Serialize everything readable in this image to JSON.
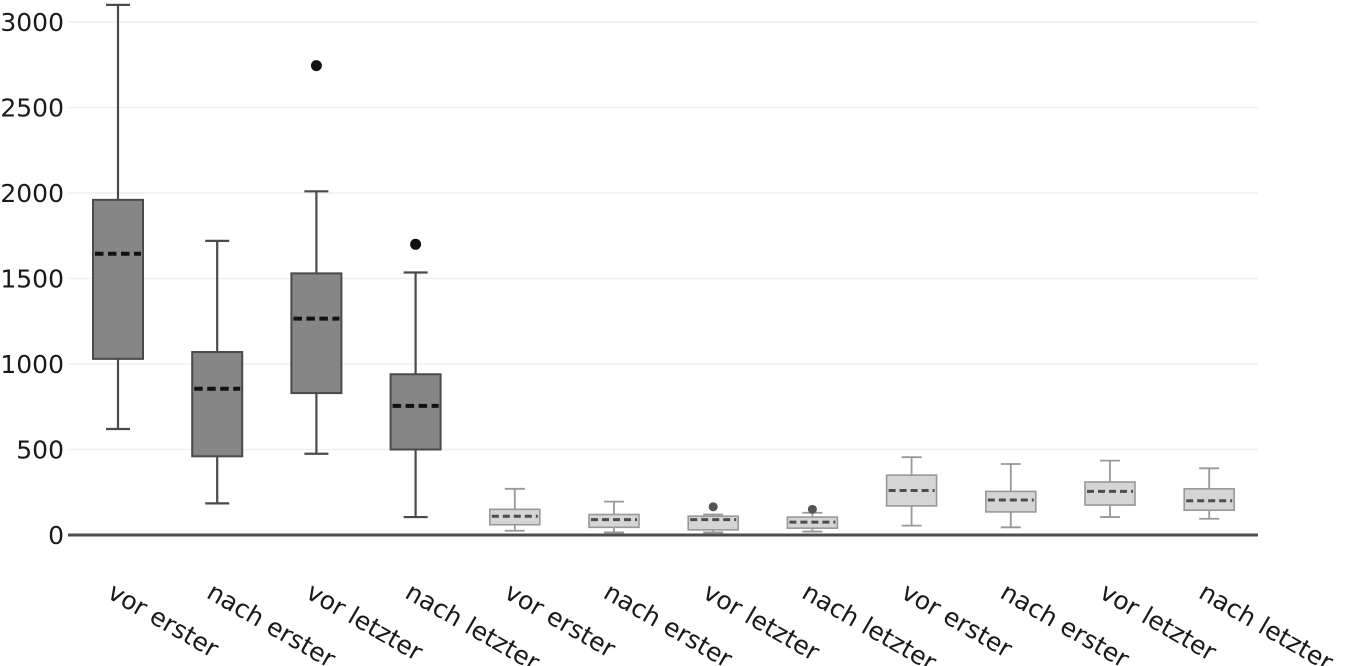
{
  "figure": {
    "background": "#ffffff"
  },
  "chart_data": {
    "type": "boxplot",
    "title": "",
    "xlabel": "",
    "ylabel": "",
    "grid": true,
    "legend": "none",
    "x_tick_rotation_deg": 30,
    "yticks": [
      0,
      500,
      1000,
      1500,
      2000,
      2500,
      3000
    ],
    "ylim": [
      0,
      3150
    ],
    "categories": [
      "vor erster",
      "nach erster",
      "vor letzter",
      "nach letzter",
      "vor erster",
      "nach erster",
      "vor letzter",
      "nach letzter",
      "vor erster",
      "nach erster",
      "vor letzter",
      "nach letzter"
    ],
    "boxes": [
      {
        "label": "vor erster",
        "group": "dark",
        "min": 620,
        "q1": 1030,
        "median": 1645,
        "q3": 1960,
        "max": 3100,
        "outliers": []
      },
      {
        "label": "nach erster",
        "group": "dark",
        "min": 185,
        "q1": 460,
        "median": 855,
        "q3": 1070,
        "max": 1720,
        "outliers": []
      },
      {
        "label": "vor letzter",
        "group": "dark",
        "min": 475,
        "q1": 830,
        "median": 1265,
        "q3": 1530,
        "max": 2010,
        "outliers": [
          2745
        ]
      },
      {
        "label": "nach letzter",
        "group": "dark",
        "min": 105,
        "q1": 500,
        "median": 755,
        "q3": 940,
        "max": 1535,
        "outliers": [
          1700
        ]
      },
      {
        "label": "vor erster",
        "group": "light",
        "min": 25,
        "q1": 60,
        "median": 110,
        "q3": 150,
        "max": 270,
        "outliers": []
      },
      {
        "label": "nach erster",
        "group": "light",
        "min": 15,
        "q1": 45,
        "median": 90,
        "q3": 120,
        "max": 195,
        "outliers": []
      },
      {
        "label": "vor letzter",
        "group": "light",
        "min": 15,
        "q1": 30,
        "median": 90,
        "q3": 110,
        "max": 120,
        "outliers": [
          165
        ]
      },
      {
        "label": "nach letzter",
        "group": "light",
        "min": 20,
        "q1": 40,
        "median": 75,
        "q3": 105,
        "max": 130,
        "outliers": [
          150
        ]
      },
      {
        "label": "vor erster",
        "group": "light",
        "min": 55,
        "q1": 170,
        "median": 260,
        "q3": 350,
        "max": 455,
        "outliers": []
      },
      {
        "label": "nach erster",
        "group": "light",
        "min": 45,
        "q1": 135,
        "median": 205,
        "q3": 255,
        "max": 415,
        "outliers": []
      },
      {
        "label": "vor letzter",
        "group": "light",
        "min": 105,
        "q1": 175,
        "median": 255,
        "q3": 310,
        "max": 435,
        "outliers": []
      },
      {
        "label": "nach letzter",
        "group": "light",
        "min": 95,
        "q1": 145,
        "median": 200,
        "q3": 270,
        "max": 390,
        "outliers": []
      }
    ],
    "styles": {
      "dark": {
        "fill": "#868686",
        "stroke": "#4a4a4a",
        "median": "#111111",
        "outlier": "#111111"
      },
      "light": {
        "fill": "#d5d5d5",
        "stroke": "#989898",
        "median": "#4d4d4d",
        "outlier": "#555555"
      }
    },
    "axis_color": "#4d4d4d",
    "grid_color": "#efefef",
    "text_color": "#1a1a1a"
  }
}
